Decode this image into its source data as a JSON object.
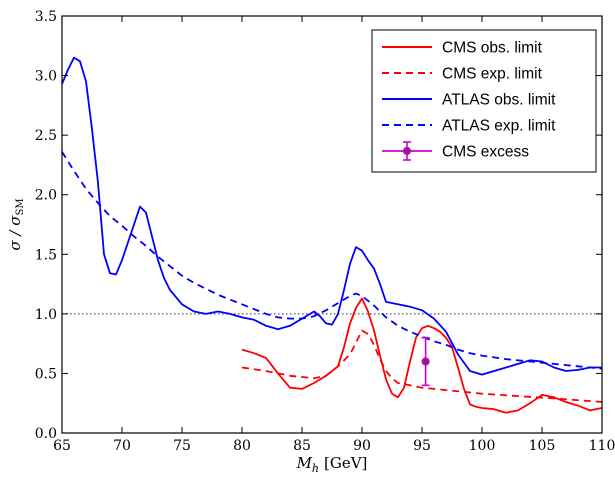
{
  "chart_data": {
    "type": "line",
    "xlabel_main": "M",
    "xlabel_sub": "h",
    "xlabel_unit": "[GeV]",
    "ylabel_main": "σ / σ",
    "ylabel_sub": "SM",
    "xlim": [
      65,
      110
    ],
    "ylim": [
      0.0,
      3.5
    ],
    "xticks": [
      65,
      70,
      75,
      80,
      85,
      90,
      95,
      100,
      105,
      110
    ],
    "yticks": [
      0.0,
      0.5,
      1.0,
      1.5,
      2.0,
      2.5,
      3.0,
      3.5
    ],
    "xtick_labels": [
      "65",
      "70",
      "75",
      "80",
      "85",
      "90",
      "95",
      "100",
      "105",
      "110"
    ],
    "ytick_labels": [
      "0.0",
      "0.5",
      "1.0",
      "1.5",
      "2.0",
      "2.5",
      "3.0",
      "3.5"
    ],
    "grid": false,
    "legend_position": "top-right",
    "reference_line": {
      "y": 1.0,
      "style": "dotted",
      "color": "#555555"
    },
    "series": [
      {
        "name": "CMS obs. limit",
        "color": "#ff0000",
        "style": "solid",
        "x": [
          80,
          81,
          82,
          83,
          84,
          85,
          86,
          87,
          88,
          88.5,
          89,
          89.5,
          90,
          90.5,
          91,
          91.5,
          92,
          92.5,
          93,
          93.5,
          94,
          94.5,
          95,
          95.5,
          96,
          96.5,
          97,
          97.5,
          98,
          98.5,
          99,
          99.5,
          100,
          101,
          102,
          103,
          104,
          105,
          106,
          107,
          108,
          109,
          110
        ],
        "y": [
          0.7,
          0.67,
          0.63,
          0.5,
          0.38,
          0.37,
          0.42,
          0.48,
          0.56,
          0.72,
          0.92,
          1.05,
          1.13,
          1.02,
          0.86,
          0.65,
          0.45,
          0.33,
          0.3,
          0.38,
          0.6,
          0.8,
          0.88,
          0.9,
          0.88,
          0.85,
          0.8,
          0.72,
          0.55,
          0.37,
          0.24,
          0.22,
          0.21,
          0.2,
          0.17,
          0.19,
          0.25,
          0.32,
          0.3,
          0.26,
          0.23,
          0.19,
          0.21
        ]
      },
      {
        "name": "CMS exp. limit",
        "color": "#ff0000",
        "style": "dashed",
        "x": [
          80,
          82,
          84,
          86,
          87,
          88,
          89,
          89.5,
          90,
          90.5,
          91,
          91.5,
          92,
          92.5,
          93,
          94,
          95,
          97,
          100,
          103,
          106,
          110
        ],
        "y": [
          0.55,
          0.52,
          0.48,
          0.46,
          0.48,
          0.56,
          0.66,
          0.76,
          0.86,
          0.83,
          0.74,
          0.62,
          0.52,
          0.46,
          0.42,
          0.4,
          0.38,
          0.36,
          0.33,
          0.31,
          0.29,
          0.26
        ]
      },
      {
        "name": "ATLAS obs. limit",
        "color": "#0000ff",
        "style": "solid",
        "x": [
          65,
          65.5,
          66,
          66.5,
          67,
          67.5,
          68,
          68.5,
          69,
          69.5,
          70,
          71,
          71.5,
          72,
          72.5,
          73,
          73.5,
          74,
          75,
          76,
          77,
          78,
          79,
          80,
          81,
          82,
          83,
          84,
          85,
          86,
          86.5,
          87,
          87.5,
          88,
          88.5,
          89,
          89.5,
          90,
          90.5,
          91,
          91.5,
          92,
          93,
          94,
          95,
          96,
          97,
          98,
          99,
          100,
          101,
          102,
          103,
          104,
          105,
          106,
          107,
          108,
          109,
          110
        ],
        "y": [
          2.93,
          3.05,
          3.15,
          3.12,
          2.95,
          2.55,
          2.1,
          1.5,
          1.34,
          1.33,
          1.45,
          1.75,
          1.9,
          1.85,
          1.65,
          1.45,
          1.3,
          1.2,
          1.08,
          1.02,
          1.0,
          1.02,
          1.0,
          0.97,
          0.95,
          0.9,
          0.87,
          0.9,
          0.96,
          1.02,
          0.98,
          0.92,
          0.91,
          1.0,
          1.2,
          1.42,
          1.56,
          1.53,
          1.45,
          1.38,
          1.25,
          1.1,
          1.08,
          1.06,
          1.03,
          0.96,
          0.85,
          0.66,
          0.52,
          0.49,
          0.52,
          0.55,
          0.58,
          0.61,
          0.6,
          0.55,
          0.52,
          0.53,
          0.55,
          0.55
        ]
      },
      {
        "name": "ATLAS exp. limit",
        "color": "#0000ff",
        "style": "dashed",
        "x": [
          65,
          66,
          67,
          68,
          69,
          70,
          71,
          72,
          73,
          74,
          75,
          76,
          77,
          78,
          79,
          80,
          81,
          82,
          83,
          84,
          85,
          86,
          87,
          88,
          89,
          89.5,
          90,
          91,
          92,
          93,
          94,
          95,
          96,
          97,
          98,
          99,
          100,
          102,
          104,
          106,
          108,
          110
        ],
        "y": [
          2.36,
          2.2,
          2.05,
          1.93,
          1.82,
          1.74,
          1.65,
          1.57,
          1.48,
          1.4,
          1.32,
          1.26,
          1.21,
          1.16,
          1.12,
          1.08,
          1.04,
          1.0,
          0.97,
          0.96,
          0.96,
          0.98,
          1.03,
          1.09,
          1.15,
          1.17,
          1.15,
          1.07,
          0.97,
          0.9,
          0.85,
          0.81,
          0.77,
          0.74,
          0.7,
          0.67,
          0.65,
          0.62,
          0.6,
          0.58,
          0.56,
          0.54
        ]
      }
    ],
    "excess": {
      "name": "CMS excess",
      "color": "#cc00cc",
      "marker_face": "#882288",
      "x": 95.3,
      "y": 0.6,
      "yerr_low": 0.4,
      "yerr_high": 0.8
    }
  }
}
